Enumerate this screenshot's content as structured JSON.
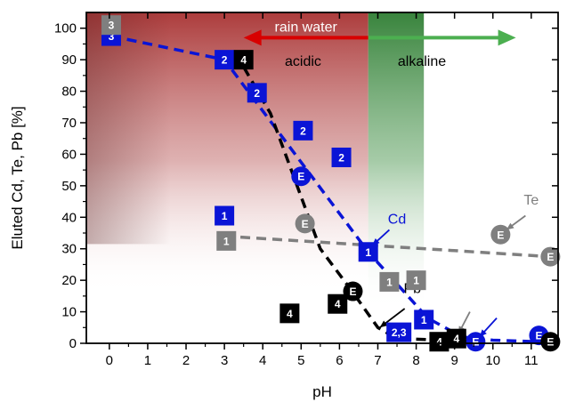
{
  "chart_data": {
    "type": "scatter",
    "title": "",
    "xlabel": "pH",
    "ylabel": "Eluted Cd, Te, Pb [%]",
    "xlim": [
      -0.6,
      11.7
    ],
    "ylim": [
      0,
      105
    ],
    "xticks": [
      0,
      1,
      2,
      3,
      4,
      5,
      6,
      7,
      8,
      9,
      10,
      11
    ],
    "yticks": [
      0,
      10,
      20,
      30,
      40,
      50,
      60,
      70,
      80,
      90,
      100
    ],
    "grid": false,
    "legend": "none",
    "colors": {
      "Cd": "#0a14d6",
      "Te": "#7f7f7f",
      "Pb": "#000000",
      "acidic_region": "#a02828",
      "alkaline_region": "#2e7d32",
      "rain_arrow": "#d80000",
      "alkaline_arrow": "#4caf50"
    },
    "regions": [
      {
        "label": "acidic",
        "x_range": [
          -0.6,
          6.75
        ]
      },
      {
        "label": "alkaline",
        "x_range": [
          6.75,
          8.2
        ]
      }
    ],
    "arrows": [
      {
        "label": "rain water",
        "x_from": 6.75,
        "x_to": 3.5,
        "y": 97
      },
      {
        "label": "",
        "x_from": 6.75,
        "x_to": 10.6,
        "y": 97
      }
    ],
    "annotations": [
      {
        "text": "acidic",
        "x": 5.05,
        "y": 88
      },
      {
        "text": "alkaline",
        "x": 8.15,
        "y": 88
      },
      {
        "text": "Cd",
        "x": 7.5,
        "y": 38
      },
      {
        "text": "Te",
        "x": 11.0,
        "y": 44
      },
      {
        "text": "Pb",
        "x": 7.9,
        "y": 16
      }
    ],
    "series": [
      {
        "name": "Cd",
        "line": [
          [
            0.05,
            97.5
          ],
          [
            3.0,
            90
          ],
          [
            6.75,
            29
          ],
          [
            8.3,
            8
          ],
          [
            9.2,
            2
          ],
          [
            10.0,
            1
          ],
          [
            11.2,
            0.5
          ]
        ],
        "points": [
          {
            "x": 0.05,
            "y": 97.5,
            "label": "3",
            "shape": "square"
          },
          {
            "x": 3.0,
            "y": 90,
            "label": "2",
            "shape": "square"
          },
          {
            "x": 3.85,
            "y": 79.5,
            "label": "2",
            "shape": "square"
          },
          {
            "x": 5.05,
            "y": 67.5,
            "label": "2",
            "shape": "square"
          },
          {
            "x": 6.05,
            "y": 59,
            "label": "2",
            "shape": "square"
          },
          {
            "x": 5.0,
            "y": 53,
            "label": "E",
            "shape": "circle"
          },
          {
            "x": 3.0,
            "y": 40.5,
            "label": "1",
            "shape": "square"
          },
          {
            "x": 6.75,
            "y": 29,
            "label": "1",
            "shape": "square"
          },
          {
            "x": 7.55,
            "y": 3.5,
            "label": "2,3",
            "shape": "square"
          },
          {
            "x": 8.2,
            "y": 7.5,
            "label": "1",
            "shape": "square"
          },
          {
            "x": 9.55,
            "y": 0.5,
            "label": "E",
            "shape": "circle"
          },
          {
            "x": 11.2,
            "y": 2.5,
            "label": "E",
            "shape": "circle"
          }
        ]
      },
      {
        "name": "Te",
        "line": [
          [
            3.0,
            34
          ],
          [
            11.5,
            27.5
          ]
        ],
        "points": [
          {
            "x": 0.05,
            "y": 101,
            "label": "3",
            "shape": "square"
          },
          {
            "x": 3.05,
            "y": 32.5,
            "label": "1",
            "shape": "square"
          },
          {
            "x": 5.1,
            "y": 38,
            "label": "E",
            "shape": "circle"
          },
          {
            "x": 7.3,
            "y": 19.5,
            "label": "1",
            "shape": "square"
          },
          {
            "x": 8.0,
            "y": 20,
            "label": "1",
            "shape": "square"
          },
          {
            "x": 10.2,
            "y": 34.5,
            "label": "E",
            "shape": "circle"
          },
          {
            "x": 11.5,
            "y": 27.5,
            "label": "E",
            "shape": "circle"
          }
        ]
      },
      {
        "name": "Pb",
        "line": [
          [
            3.3,
            92
          ],
          [
            4.2,
            73
          ],
          [
            5.5,
            30
          ],
          [
            6.3,
            17
          ],
          [
            7.0,
            5
          ],
          [
            7.5,
            1.5
          ],
          [
            8.8,
            1
          ],
          [
            9.5,
            0.5
          ]
        ],
        "points": [
          {
            "x": 3.5,
            "y": 90,
            "label": "4",
            "shape": "square"
          },
          {
            "x": 4.7,
            "y": 9.5,
            "label": "4",
            "shape": "square"
          },
          {
            "x": 6.35,
            "y": 16.5,
            "label": "E",
            "shape": "circle"
          },
          {
            "x": 5.95,
            "y": 12.5,
            "label": "4",
            "shape": "square"
          },
          {
            "x": 8.6,
            "y": 0.5,
            "label": "4",
            "shape": "square"
          },
          {
            "x": 9.05,
            "y": 1.5,
            "label": "4",
            "shape": "square"
          },
          {
            "x": 11.5,
            "y": 0.5,
            "label": "E",
            "shape": "circle"
          }
        ]
      }
    ]
  }
}
